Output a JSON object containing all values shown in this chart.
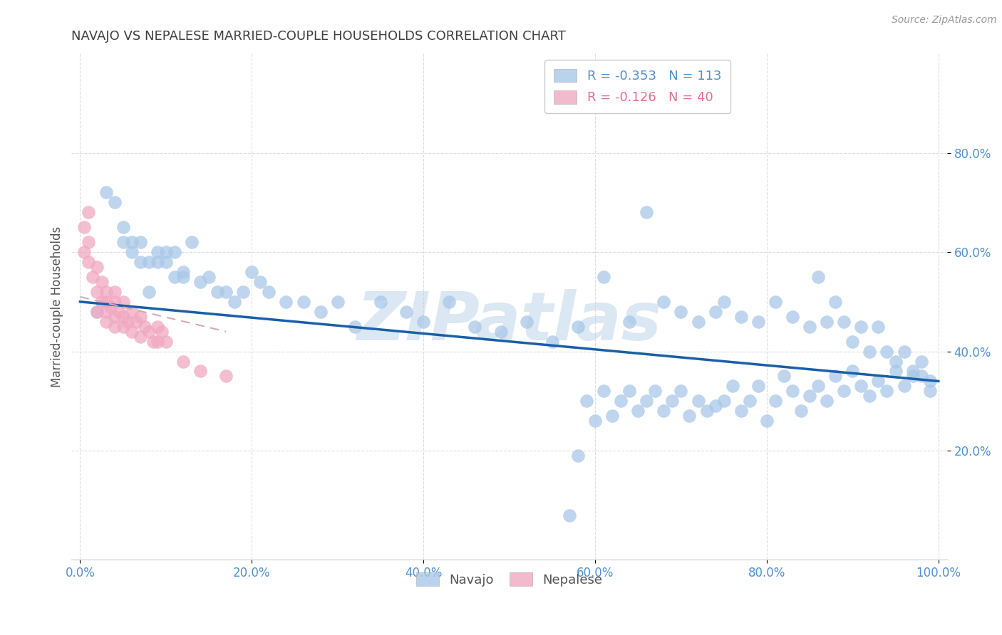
{
  "title": "NAVAJO VS NEPALESE MARRIED-COUPLE HOUSEHOLDS CORRELATION CHART",
  "source": "Source: ZipAtlas.com",
  "ylabel_label": "Married-couple Households",
  "navajo_R": -0.353,
  "navajo_N": 113,
  "nepalese_R": -0.126,
  "nepalese_N": 40,
  "navajo_color": "#a8c8e8",
  "nepalese_color": "#f0a8c0",
  "navajo_line_color": "#1a5fa8",
  "nepalese_line_color": "#d8a8b8",
  "watermark": "ZIPatlas",
  "watermark_color": "#b8d0e8",
  "xlim": [
    -0.01,
    1.01
  ],
  "ylim": [
    -0.02,
    1.0
  ],
  "xticks": [
    0.0,
    0.2,
    0.4,
    0.6,
    0.8,
    1.0
  ],
  "yticks": [
    0.2,
    0.4,
    0.6,
    0.8
  ],
  "xtick_labels": [
    "0.0%",
    "20.0%",
    "40.0%",
    "60.0%",
    "80.0%",
    "100.0%"
  ],
  "ytick_labels": [
    "20.0%",
    "40.0%",
    "60.0%",
    "80.0%"
  ],
  "navajo_x": [
    0.02,
    0.04,
    0.05,
    0.06,
    0.07,
    0.08,
    0.09,
    0.1,
    0.11,
    0.12,
    0.03,
    0.05,
    0.07,
    0.09,
    0.11,
    0.13,
    0.15,
    0.17,
    0.19,
    0.21,
    0.06,
    0.08,
    0.1,
    0.12,
    0.14,
    0.16,
    0.18,
    0.2,
    0.22,
    0.24,
    0.26,
    0.28,
    0.3,
    0.32,
    0.35,
    0.38,
    0.4,
    0.43,
    0.46,
    0.49,
    0.52,
    0.55,
    0.58,
    0.61,
    0.64,
    0.66,
    0.68,
    0.7,
    0.72,
    0.74,
    0.75,
    0.77,
    0.79,
    0.81,
    0.83,
    0.85,
    0.86,
    0.87,
    0.88,
    0.89,
    0.9,
    0.91,
    0.92,
    0.93,
    0.94,
    0.95,
    0.96,
    0.97,
    0.98,
    0.99,
    0.99,
    0.98,
    0.97,
    0.96,
    0.95,
    0.94,
    0.93,
    0.92,
    0.91,
    0.9,
    0.89,
    0.88,
    0.87,
    0.86,
    0.85,
    0.84,
    0.83,
    0.82,
    0.81,
    0.8,
    0.79,
    0.78,
    0.77,
    0.76,
    0.75,
    0.74,
    0.73,
    0.72,
    0.71,
    0.7,
    0.69,
    0.68,
    0.67,
    0.66,
    0.65,
    0.64,
    0.63,
    0.62,
    0.61,
    0.6,
    0.59,
    0.58,
    0.57
  ],
  "navajo_y": [
    0.48,
    0.7,
    0.62,
    0.6,
    0.58,
    0.52,
    0.6,
    0.58,
    0.6,
    0.56,
    0.72,
    0.65,
    0.62,
    0.58,
    0.55,
    0.62,
    0.55,
    0.52,
    0.52,
    0.54,
    0.62,
    0.58,
    0.6,
    0.55,
    0.54,
    0.52,
    0.5,
    0.56,
    0.52,
    0.5,
    0.5,
    0.48,
    0.5,
    0.45,
    0.5,
    0.48,
    0.46,
    0.5,
    0.45,
    0.44,
    0.46,
    0.42,
    0.45,
    0.55,
    0.46,
    0.68,
    0.5,
    0.48,
    0.46,
    0.48,
    0.5,
    0.47,
    0.46,
    0.5,
    0.47,
    0.45,
    0.55,
    0.46,
    0.5,
    0.46,
    0.42,
    0.45,
    0.4,
    0.45,
    0.4,
    0.38,
    0.4,
    0.36,
    0.35,
    0.32,
    0.34,
    0.38,
    0.35,
    0.33,
    0.36,
    0.32,
    0.34,
    0.31,
    0.33,
    0.36,
    0.32,
    0.35,
    0.3,
    0.33,
    0.31,
    0.28,
    0.32,
    0.35,
    0.3,
    0.26,
    0.33,
    0.3,
    0.28,
    0.33,
    0.3,
    0.29,
    0.28,
    0.3,
    0.27,
    0.32,
    0.3,
    0.28,
    0.32,
    0.3,
    0.28,
    0.32,
    0.3,
    0.27,
    0.32,
    0.26,
    0.3,
    0.19,
    0.07
  ],
  "nepalese_x": [
    0.005,
    0.005,
    0.01,
    0.01,
    0.01,
    0.015,
    0.02,
    0.02,
    0.02,
    0.025,
    0.025,
    0.03,
    0.03,
    0.03,
    0.03,
    0.035,
    0.04,
    0.04,
    0.04,
    0.04,
    0.045,
    0.05,
    0.05,
    0.05,
    0.055,
    0.06,
    0.06,
    0.065,
    0.07,
    0.07,
    0.075,
    0.08,
    0.085,
    0.09,
    0.09,
    0.095,
    0.1,
    0.12,
    0.14,
    0.17
  ],
  "nepalese_y": [
    0.65,
    0.6,
    0.68,
    0.62,
    0.58,
    0.55,
    0.52,
    0.48,
    0.57,
    0.5,
    0.54,
    0.52,
    0.48,
    0.46,
    0.5,
    0.49,
    0.5,
    0.47,
    0.45,
    0.52,
    0.48,
    0.5,
    0.47,
    0.45,
    0.46,
    0.48,
    0.44,
    0.46,
    0.43,
    0.47,
    0.45,
    0.44,
    0.42,
    0.45,
    0.42,
    0.44,
    0.42,
    0.38,
    0.36,
    0.35
  ],
  "navajo_trend_x": [
    0.0,
    1.0
  ],
  "navajo_trend_y": [
    0.5,
    0.34
  ],
  "nepalese_trend_x": [
    0.0,
    0.17
  ],
  "nepalese_trend_y": [
    0.51,
    0.44
  ],
  "background_color": "#ffffff",
  "grid_color": "#dddddd",
  "title_color": "#404040",
  "axis_label_color": "#555555",
  "tick_label_color": "#5090d0",
  "legend_color": "#5090d0",
  "nepalese_legend_color": "#e07090"
}
